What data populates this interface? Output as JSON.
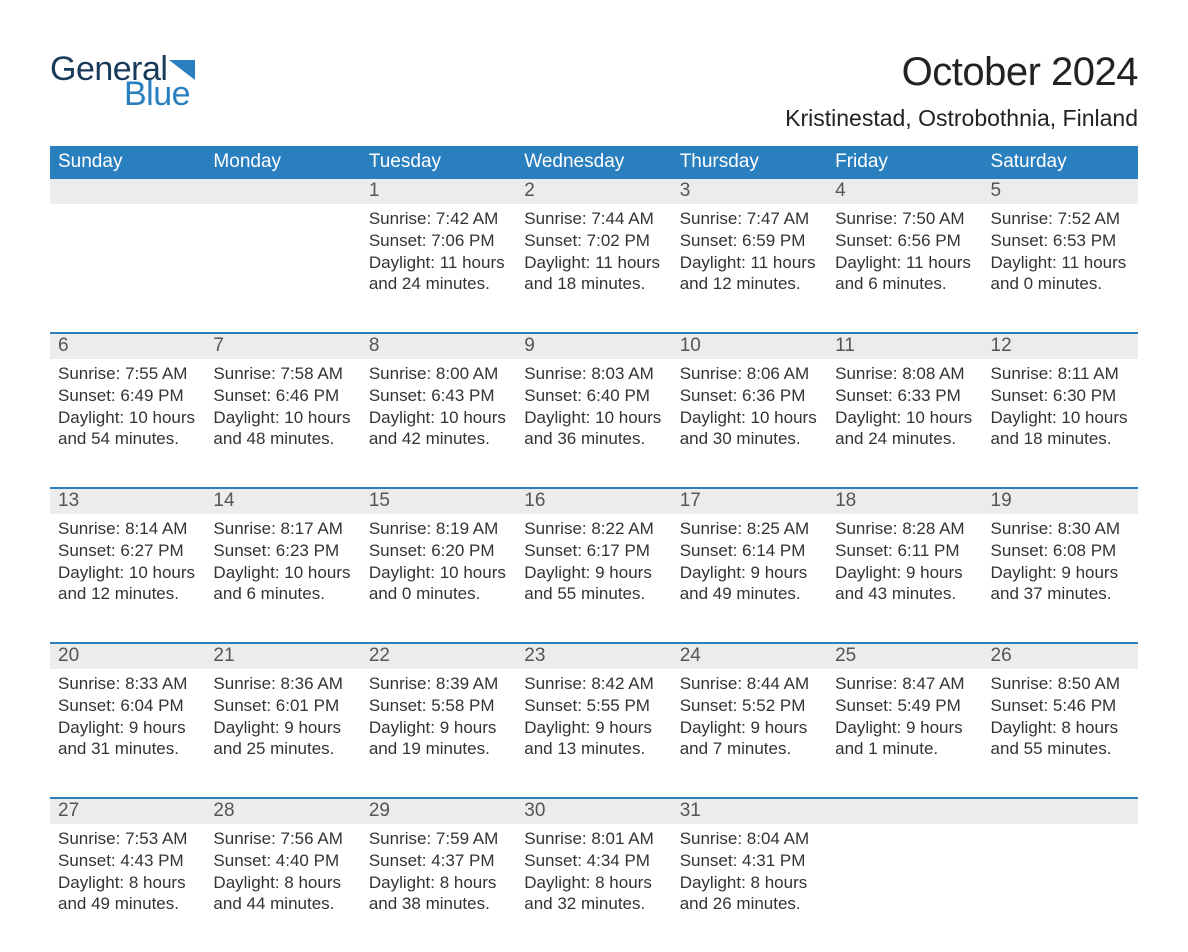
{
  "logo": {
    "line1": "General",
    "line2": "Blue",
    "flag_color": "#2a7fbf"
  },
  "header": {
    "month_title": "October 2024",
    "location": "Kristinestad, Ostrobothnia, Finland"
  },
  "colors": {
    "header_bg": "#2a7fbf",
    "header_text": "#ffffff",
    "daynum_bg": "#ececec",
    "row_border": "#2a7fbf",
    "body_text": "#333333"
  },
  "weekdays": [
    "Sunday",
    "Monday",
    "Tuesday",
    "Wednesday",
    "Thursday",
    "Friday",
    "Saturday"
  ],
  "weeks": [
    [
      {
        "day": "",
        "sunrise": "",
        "sunset": "",
        "daylight": ""
      },
      {
        "day": "",
        "sunrise": "",
        "sunset": "",
        "daylight": ""
      },
      {
        "day": "1",
        "sunrise": "Sunrise: 7:42 AM",
        "sunset": "Sunset: 7:06 PM",
        "daylight": "Daylight: 11 hours and 24 minutes."
      },
      {
        "day": "2",
        "sunrise": "Sunrise: 7:44 AM",
        "sunset": "Sunset: 7:02 PM",
        "daylight": "Daylight: 11 hours and 18 minutes."
      },
      {
        "day": "3",
        "sunrise": "Sunrise: 7:47 AM",
        "sunset": "Sunset: 6:59 PM",
        "daylight": "Daylight: 11 hours and 12 minutes."
      },
      {
        "day": "4",
        "sunrise": "Sunrise: 7:50 AM",
        "sunset": "Sunset: 6:56 PM",
        "daylight": "Daylight: 11 hours and 6 minutes."
      },
      {
        "day": "5",
        "sunrise": "Sunrise: 7:52 AM",
        "sunset": "Sunset: 6:53 PM",
        "daylight": "Daylight: 11 hours and 0 minutes."
      }
    ],
    [
      {
        "day": "6",
        "sunrise": "Sunrise: 7:55 AM",
        "sunset": "Sunset: 6:49 PM",
        "daylight": "Daylight: 10 hours and 54 minutes."
      },
      {
        "day": "7",
        "sunrise": "Sunrise: 7:58 AM",
        "sunset": "Sunset: 6:46 PM",
        "daylight": "Daylight: 10 hours and 48 minutes."
      },
      {
        "day": "8",
        "sunrise": "Sunrise: 8:00 AM",
        "sunset": "Sunset: 6:43 PM",
        "daylight": "Daylight: 10 hours and 42 minutes."
      },
      {
        "day": "9",
        "sunrise": "Sunrise: 8:03 AM",
        "sunset": "Sunset: 6:40 PM",
        "daylight": "Daylight: 10 hours and 36 minutes."
      },
      {
        "day": "10",
        "sunrise": "Sunrise: 8:06 AM",
        "sunset": "Sunset: 6:36 PM",
        "daylight": "Daylight: 10 hours and 30 minutes."
      },
      {
        "day": "11",
        "sunrise": "Sunrise: 8:08 AM",
        "sunset": "Sunset: 6:33 PM",
        "daylight": "Daylight: 10 hours and 24 minutes."
      },
      {
        "day": "12",
        "sunrise": "Sunrise: 8:11 AM",
        "sunset": "Sunset: 6:30 PM",
        "daylight": "Daylight: 10 hours and 18 minutes."
      }
    ],
    [
      {
        "day": "13",
        "sunrise": "Sunrise: 8:14 AM",
        "sunset": "Sunset: 6:27 PM",
        "daylight": "Daylight: 10 hours and 12 minutes."
      },
      {
        "day": "14",
        "sunrise": "Sunrise: 8:17 AM",
        "sunset": "Sunset: 6:23 PM",
        "daylight": "Daylight: 10 hours and 6 minutes."
      },
      {
        "day": "15",
        "sunrise": "Sunrise: 8:19 AM",
        "sunset": "Sunset: 6:20 PM",
        "daylight": "Daylight: 10 hours and 0 minutes."
      },
      {
        "day": "16",
        "sunrise": "Sunrise: 8:22 AM",
        "sunset": "Sunset: 6:17 PM",
        "daylight": "Daylight: 9 hours and 55 minutes."
      },
      {
        "day": "17",
        "sunrise": "Sunrise: 8:25 AM",
        "sunset": "Sunset: 6:14 PM",
        "daylight": "Daylight: 9 hours and 49 minutes."
      },
      {
        "day": "18",
        "sunrise": "Sunrise: 8:28 AM",
        "sunset": "Sunset: 6:11 PM",
        "daylight": "Daylight: 9 hours and 43 minutes."
      },
      {
        "day": "19",
        "sunrise": "Sunrise: 8:30 AM",
        "sunset": "Sunset: 6:08 PM",
        "daylight": "Daylight: 9 hours and 37 minutes."
      }
    ],
    [
      {
        "day": "20",
        "sunrise": "Sunrise: 8:33 AM",
        "sunset": "Sunset: 6:04 PM",
        "daylight": "Daylight: 9 hours and 31 minutes."
      },
      {
        "day": "21",
        "sunrise": "Sunrise: 8:36 AM",
        "sunset": "Sunset: 6:01 PM",
        "daylight": "Daylight: 9 hours and 25 minutes."
      },
      {
        "day": "22",
        "sunrise": "Sunrise: 8:39 AM",
        "sunset": "Sunset: 5:58 PM",
        "daylight": "Daylight: 9 hours and 19 minutes."
      },
      {
        "day": "23",
        "sunrise": "Sunrise: 8:42 AM",
        "sunset": "Sunset: 5:55 PM",
        "daylight": "Daylight: 9 hours and 13 minutes."
      },
      {
        "day": "24",
        "sunrise": "Sunrise: 8:44 AM",
        "sunset": "Sunset: 5:52 PM",
        "daylight": "Daylight: 9 hours and 7 minutes."
      },
      {
        "day": "25",
        "sunrise": "Sunrise: 8:47 AM",
        "sunset": "Sunset: 5:49 PM",
        "daylight": "Daylight: 9 hours and 1 minute."
      },
      {
        "day": "26",
        "sunrise": "Sunrise: 8:50 AM",
        "sunset": "Sunset: 5:46 PM",
        "daylight": "Daylight: 8 hours and 55 minutes."
      }
    ],
    [
      {
        "day": "27",
        "sunrise": "Sunrise: 7:53 AM",
        "sunset": "Sunset: 4:43 PM",
        "daylight": "Daylight: 8 hours and 49 minutes."
      },
      {
        "day": "28",
        "sunrise": "Sunrise: 7:56 AM",
        "sunset": "Sunset: 4:40 PM",
        "daylight": "Daylight: 8 hours and 44 minutes."
      },
      {
        "day": "29",
        "sunrise": "Sunrise: 7:59 AM",
        "sunset": "Sunset: 4:37 PM",
        "daylight": "Daylight: 8 hours and 38 minutes."
      },
      {
        "day": "30",
        "sunrise": "Sunrise: 8:01 AM",
        "sunset": "Sunset: 4:34 PM",
        "daylight": "Daylight: 8 hours and 32 minutes."
      },
      {
        "day": "31",
        "sunrise": "Sunrise: 8:04 AM",
        "sunset": "Sunset: 4:31 PM",
        "daylight": "Daylight: 8 hours and 26 minutes."
      },
      {
        "day": "",
        "sunrise": "",
        "sunset": "",
        "daylight": ""
      },
      {
        "day": "",
        "sunrise": "",
        "sunset": "",
        "daylight": ""
      }
    ]
  ]
}
